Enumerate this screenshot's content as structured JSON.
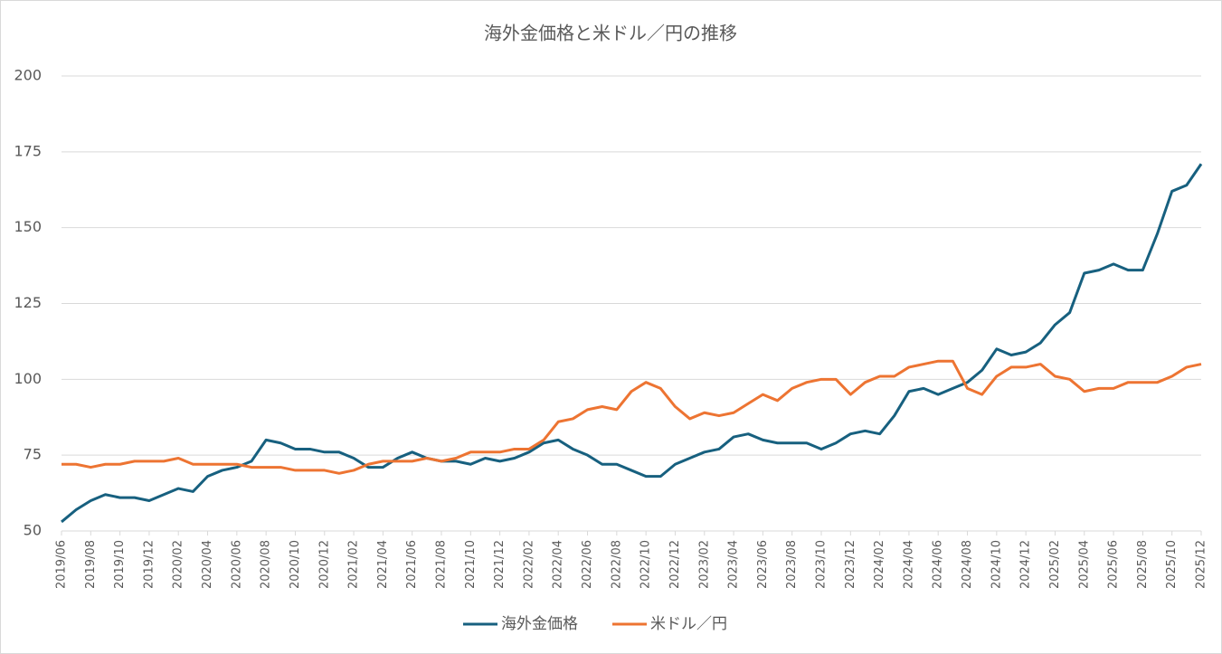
{
  "chart_data": {
    "type": "line",
    "title": "海外金価格と米ドル／円の推移",
    "categories": [
      "2019/06",
      null,
      "2019/08",
      null,
      "2019/10",
      null,
      "2019/12",
      null,
      "2020/02",
      null,
      "2020/04",
      null,
      "2020/06",
      null,
      "2020/08",
      null,
      "2020/10",
      null,
      "2020/12",
      null,
      "2021/02",
      null,
      "2021/04",
      null,
      "2021/06",
      null,
      "2021/08",
      null,
      "2021/10",
      null,
      "2021/12",
      null,
      "2022/02",
      null,
      "2022/04",
      null,
      "2022/06",
      null,
      "2022/08",
      null,
      "2022/10",
      null,
      "2022/12",
      null,
      "2023/02",
      null,
      "2023/04",
      null,
      "2023/06",
      null,
      "2023/08",
      null,
      "2023/10",
      null,
      "2023/12",
      null,
      "2024/02",
      null,
      "2024/04",
      null,
      "2024/06",
      null,
      "2024/08",
      null,
      "2024/10",
      null,
      "2024/12",
      null,
      "2025/02",
      null,
      "2025/04",
      null,
      "2025/06",
      null,
      "2025/08",
      null,
      "2025/10",
      null,
      "2025/12"
    ],
    "series": [
      {
        "name": "海外金価格",
        "color": "#17607f",
        "values": [
          53,
          57,
          60,
          62,
          61,
          61,
          60,
          62,
          64,
          63,
          68,
          70,
          71,
          73,
          80,
          79,
          77,
          77,
          76,
          76,
          74,
          71,
          71,
          74,
          76,
          74,
          73,
          73,
          72,
          74,
          73,
          74,
          76,
          79,
          80,
          77,
          75,
          72,
          72,
          70,
          68,
          68,
          72,
          74,
          76,
          77,
          81,
          82,
          80,
          79,
          79,
          79,
          77,
          79,
          82,
          83,
          82,
          88,
          96,
          97,
          95,
          97,
          99,
          103,
          110,
          108,
          109,
          112,
          118,
          122,
          135,
          136,
          138,
          136,
          136,
          148,
          162,
          164,
          171
        ]
      },
      {
        "name": "米ドル／円",
        "color": "#ed7432",
        "values": [
          72,
          72,
          71,
          72,
          72,
          73,
          73,
          73,
          74,
          72,
          72,
          72,
          72,
          71,
          71,
          71,
          70,
          70,
          70,
          69,
          70,
          72,
          73,
          73,
          73,
          74,
          73,
          74,
          76,
          76,
          76,
          77,
          77,
          80,
          86,
          87,
          90,
          91,
          90,
          96,
          99,
          97,
          91,
          87,
          89,
          88,
          89,
          92,
          95,
          93,
          97,
          99,
          100,
          100,
          95,
          99,
          101,
          101,
          104,
          105,
          106,
          106,
          97,
          95,
          101,
          104,
          104,
          105,
          101,
          100,
          96,
          97,
          97,
          99,
          99,
          99,
          101,
          104,
          105
        ]
      }
    ],
    "ylim": [
      50,
      200
    ],
    "yticks": [
      50,
      75,
      100,
      125,
      150,
      175,
      200
    ],
    "grid": true,
    "legend": "bottom"
  }
}
